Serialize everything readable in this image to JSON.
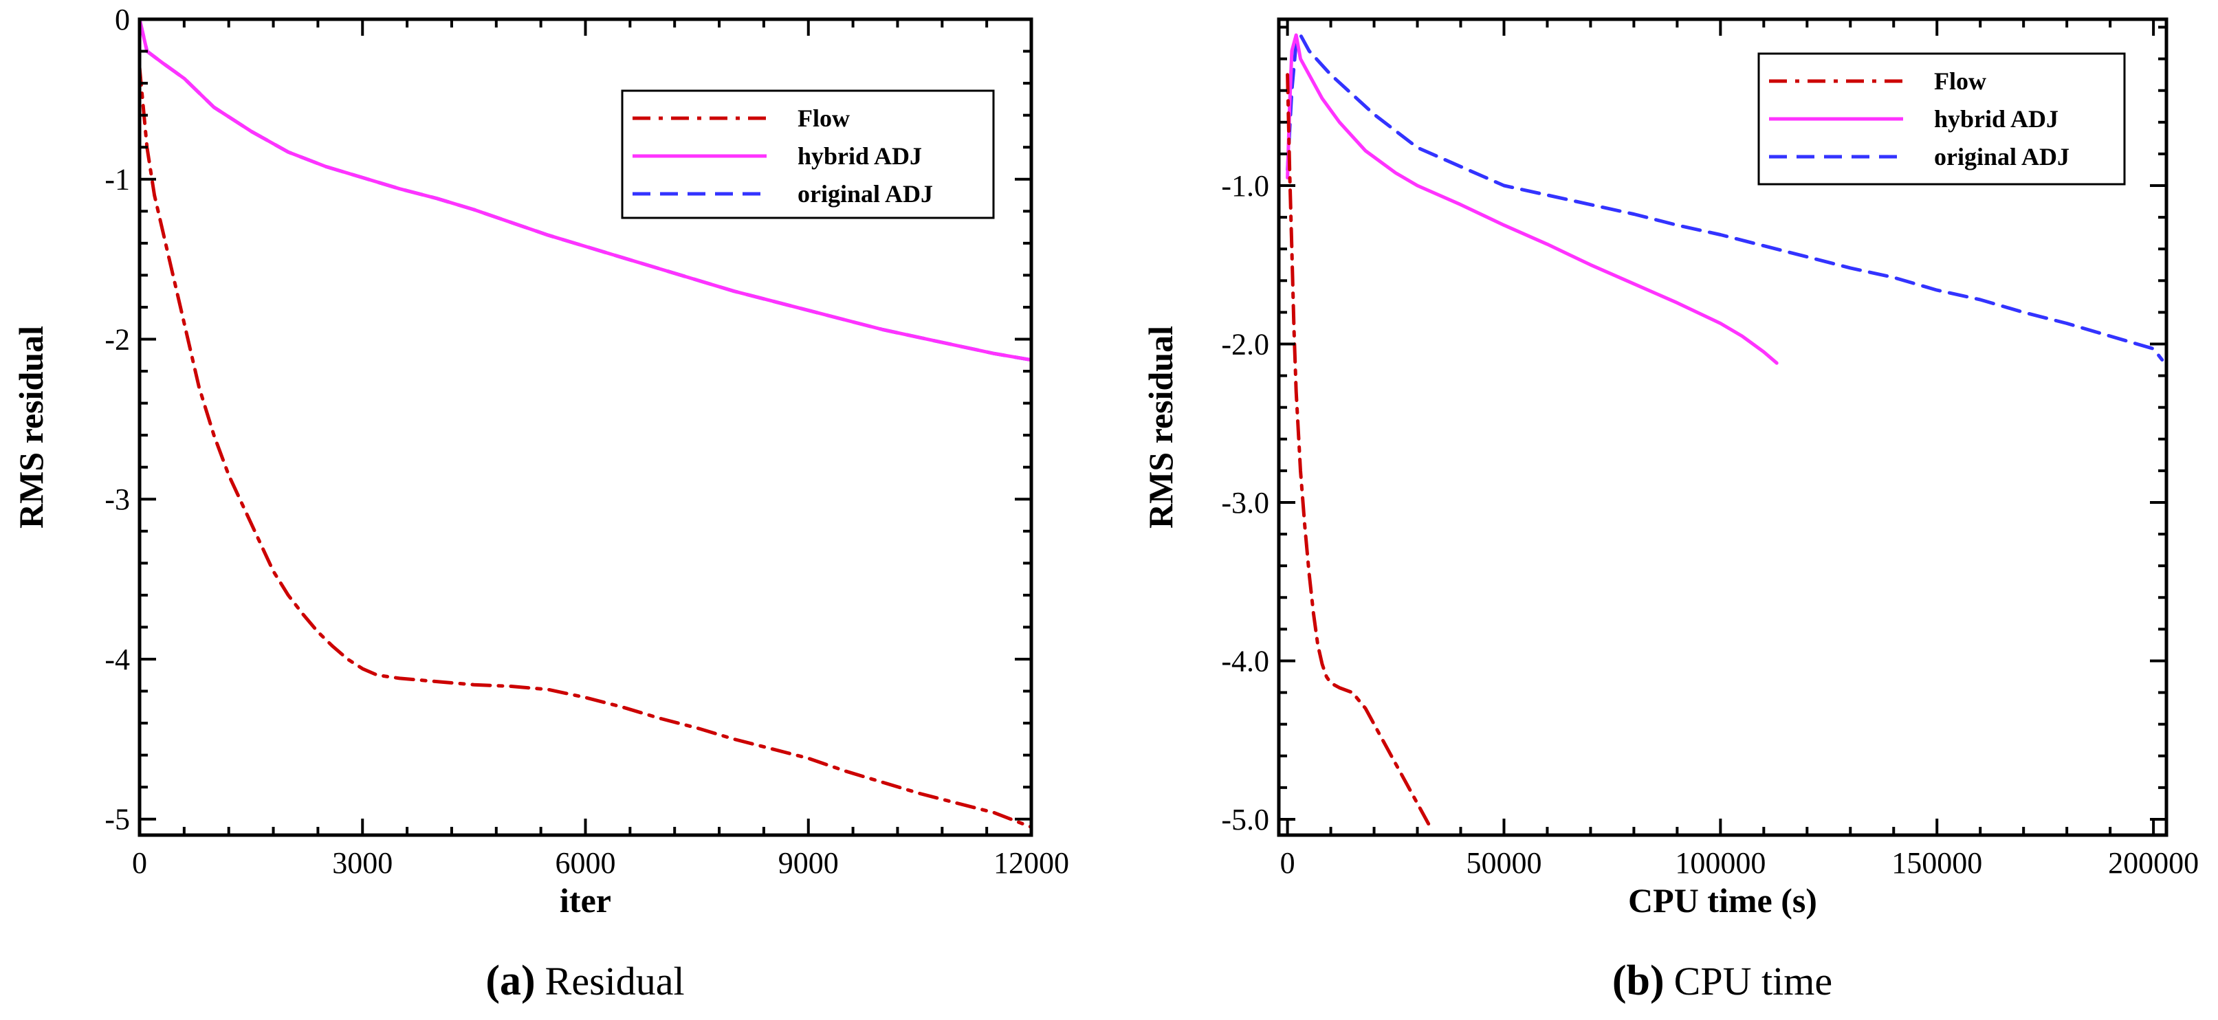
{
  "chart_data": [
    {
      "type": "line",
      "title": "",
      "xlabel": "iter",
      "ylabel": "RMS residual",
      "xlim": [
        0,
        12000
      ],
      "ylim": [
        -5.1,
        0
      ],
      "xticks": [
        0,
        3000,
        6000,
        9000,
        12000
      ],
      "xtick_labels": [
        "0",
        "3000",
        "6000",
        "9000",
        "12000"
      ],
      "yticks": [
        0,
        -1,
        -2,
        -3,
        -4,
        -5
      ],
      "ytick_labels": [
        "0",
        "-1",
        "-2",
        "-3",
        "-4",
        "-5"
      ],
      "legend": [
        "Flow",
        "hybrid ADJ",
        "original ADJ"
      ],
      "legend_position": "top-right",
      "caption_letter": "(a)",
      "caption_text": "Residual",
      "series": [
        {
          "name": "Flow",
          "color": "#cc0000",
          "style": "dashdot",
          "x": [
            0,
            100,
            200,
            400,
            600,
            800,
            1000,
            1200,
            1400,
            1600,
            1800,
            2000,
            2200,
            2400,
            2600,
            2800,
            3000,
            3200,
            3500,
            4000,
            4500,
            5000,
            5500,
            6000,
            6500,
            7000,
            7500,
            8000,
            8500,
            9000,
            9500,
            10000,
            10500,
            11000,
            11500,
            12000
          ],
          "y": [
            -0.3,
            -0.8,
            -1.1,
            -1.5,
            -1.9,
            -2.3,
            -2.6,
            -2.85,
            -3.05,
            -3.25,
            -3.45,
            -3.6,
            -3.72,
            -3.83,
            -3.92,
            -4.0,
            -4.06,
            -4.1,
            -4.12,
            -4.14,
            -4.16,
            -4.17,
            -4.19,
            -4.24,
            -4.3,
            -4.37,
            -4.43,
            -4.5,
            -4.56,
            -4.62,
            -4.7,
            -4.77,
            -4.84,
            -4.9,
            -4.96,
            -5.05
          ]
        },
        {
          "name": "hybrid ADJ",
          "color": "#ff33ff",
          "style": "solid",
          "x": [
            0,
            100,
            300,
            600,
            1000,
            1500,
            2000,
            2500,
            3000,
            3500,
            4000,
            4500,
            5000,
            5500,
            6000,
            6500,
            7000,
            7500,
            8000,
            8500,
            9000,
            9500,
            10000,
            10500,
            11000,
            11500,
            12000
          ],
          "y": [
            0,
            -0.2,
            -0.27,
            -0.37,
            -0.55,
            -0.7,
            -0.83,
            -0.92,
            -0.99,
            -1.06,
            -1.12,
            -1.19,
            -1.27,
            -1.35,
            -1.42,
            -1.49,
            -1.56,
            -1.63,
            -1.7,
            -1.76,
            -1.82,
            -1.88,
            -1.94,
            -1.99,
            -2.04,
            -2.09,
            -2.13
          ]
        },
        {
          "name": "original ADJ",
          "color": "#3333ff",
          "style": "dashed",
          "x": [
            0,
            100,
            300,
            600,
            1000,
            1500,
            2000,
            2500,
            3000,
            3500,
            4000,
            4500,
            5000,
            5500,
            6000,
            6500,
            7000,
            7500,
            8000,
            8500,
            9000,
            9500,
            10000,
            10500,
            11000,
            11500,
            12000
          ],
          "y": [
            0,
            -0.2,
            -0.27,
            -0.37,
            -0.55,
            -0.7,
            -0.83,
            -0.92,
            -0.99,
            -1.06,
            -1.12,
            -1.19,
            -1.27,
            -1.35,
            -1.42,
            -1.49,
            -1.56,
            -1.63,
            -1.7,
            -1.76,
            -1.82,
            -1.88,
            -1.94,
            -1.99,
            -2.04,
            -2.09,
            -2.13
          ]
        }
      ]
    },
    {
      "type": "line",
      "title": "",
      "xlabel": "CPU time (s)",
      "ylabel": "RMS residual",
      "xlim": [
        -2000,
        203000
      ],
      "ylim": [
        -5.1,
        0.05
      ],
      "xticks": [
        0,
        50000,
        100000,
        150000,
        200000
      ],
      "xtick_labels": [
        "0",
        "50000",
        "100000",
        "150000",
        "200000"
      ],
      "yticks": [
        -1,
        -2,
        -3,
        -4,
        -5
      ],
      "ytick_labels": [
        "-1.0",
        "-2.0",
        "-3.0",
        "-4.0",
        "-5.0"
      ],
      "legend": [
        "Flow",
        "hybrid ADJ",
        "original ADJ"
      ],
      "legend_position": "top-right",
      "caption_letter": "(b)",
      "caption_text": "CPU time",
      "series": [
        {
          "name": "Flow",
          "color": "#cc0000",
          "style": "dashdot",
          "x": [
            0,
            500,
            1000,
            1500,
            2000,
            3000,
            4000,
            5000,
            6000,
            7000,
            8000,
            9000,
            10000,
            12000,
            15000,
            18000,
            21000,
            24000,
            27000,
            30000,
            33000
          ],
          "y": [
            -0.3,
            -0.9,
            -1.4,
            -1.9,
            -2.3,
            -2.8,
            -3.15,
            -3.45,
            -3.7,
            -3.9,
            -4.02,
            -4.1,
            -4.14,
            -4.17,
            -4.2,
            -4.3,
            -4.45,
            -4.6,
            -4.75,
            -4.9,
            -5.05
          ]
        },
        {
          "name": "hybrid ADJ",
          "color": "#ff33ff",
          "style": "solid",
          "x": [
            0,
            500,
            1000,
            2000,
            3000,
            5000,
            8000,
            12000,
            18000,
            25000,
            30000,
            40000,
            50000,
            60000,
            70000,
            80000,
            90000,
            100000,
            105000,
            110000,
            113000
          ],
          "y": [
            -0.95,
            -0.5,
            -0.15,
            -0.05,
            -0.2,
            -0.3,
            -0.45,
            -0.6,
            -0.78,
            -0.92,
            -1.0,
            -1.12,
            -1.25,
            -1.37,
            -1.5,
            -1.62,
            -1.74,
            -1.87,
            -1.95,
            -2.05,
            -2.12
          ]
        },
        {
          "name": "original ADJ",
          "color": "#3333ff",
          "style": "dashed",
          "x": [
            0,
            1000,
            2000,
            3000,
            5000,
            10000,
            20000,
            30000,
            40000,
            50000,
            60000,
            70000,
            80000,
            90000,
            100000,
            110000,
            120000,
            130000,
            140000,
            150000,
            160000,
            170000,
            180000,
            190000,
            200000,
            202000
          ],
          "y": [
            -0.9,
            -0.4,
            -0.1,
            -0.05,
            -0.15,
            -0.3,
            -0.55,
            -0.76,
            -0.88,
            -1.0,
            -1.06,
            -1.12,
            -1.18,
            -1.25,
            -1.31,
            -1.38,
            -1.45,
            -1.52,
            -1.58,
            -1.66,
            -1.72,
            -1.8,
            -1.87,
            -1.95,
            -2.03,
            -2.1
          ]
        }
      ]
    }
  ]
}
